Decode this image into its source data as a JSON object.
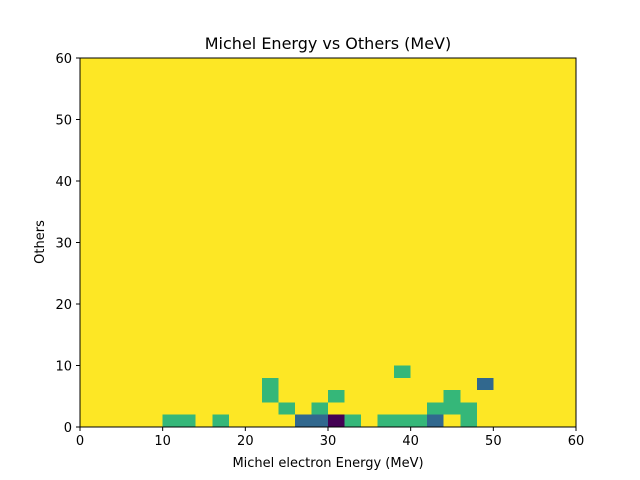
{
  "chart_data": {
    "type": "heatmap",
    "title": "Michel Energy vs Others (MeV)",
    "xlabel": "Michel electron Energy (MeV)",
    "ylabel": "Others",
    "xlim": [
      0,
      60
    ],
    "ylim": [
      0,
      60
    ],
    "xticks": [
      0,
      10,
      20,
      30,
      40,
      50,
      60
    ],
    "yticks": [
      0,
      10,
      20,
      30,
      40,
      50,
      60
    ],
    "grid": false,
    "bin_width": 2,
    "background_color": "#fde725",
    "cells": [
      {
        "x0": 10,
        "x1": 12,
        "y0": 0,
        "y1": 2,
        "color": "#35b779"
      },
      {
        "x0": 12,
        "x1": 14,
        "y0": 0,
        "y1": 2,
        "color": "#35b779"
      },
      {
        "x0": 16,
        "x1": 18,
        "y0": 0,
        "y1": 2,
        "color": "#35b779"
      },
      {
        "x0": 22,
        "x1": 24,
        "y0": 4,
        "y1": 6,
        "color": "#35b779"
      },
      {
        "x0": 22,
        "x1": 24,
        "y0": 6,
        "y1": 8,
        "color": "#35b779"
      },
      {
        "x0": 24,
        "x1": 26,
        "y0": 2,
        "y1": 4,
        "color": "#35b779"
      },
      {
        "x0": 26,
        "x1": 28,
        "y0": 0,
        "y1": 2,
        "color": "#31688e"
      },
      {
        "x0": 28,
        "x1": 30,
        "y0": 0,
        "y1": 2,
        "color": "#31688e"
      },
      {
        "x0": 28,
        "x1": 30,
        "y0": 2,
        "y1": 4,
        "color": "#35b779"
      },
      {
        "x0": 30,
        "x1": 32,
        "y0": 0,
        "y1": 2,
        "color": "#440154"
      },
      {
        "x0": 30,
        "x1": 32,
        "y0": 4,
        "y1": 6,
        "color": "#35b779"
      },
      {
        "x0": 32,
        "x1": 34,
        "y0": 0,
        "y1": 2,
        "color": "#35b779"
      },
      {
        "x0": 36,
        "x1": 38,
        "y0": 0,
        "y1": 2,
        "color": "#35b779"
      },
      {
        "x0": 38,
        "x1": 40,
        "y0": 0,
        "y1": 2,
        "color": "#35b779"
      },
      {
        "x0": 38,
        "x1": 40,
        "y0": 8,
        "y1": 10,
        "color": "#35b779"
      },
      {
        "x0": 40,
        "x1": 42,
        "y0": 0,
        "y1": 2,
        "color": "#35b779"
      },
      {
        "x0": 42,
        "x1": 44,
        "y0": 0,
        "y1": 2,
        "color": "#31688e"
      },
      {
        "x0": 42,
        "x1": 44,
        "y0": 2,
        "y1": 4,
        "color": "#35b779"
      },
      {
        "x0": 44,
        "x1": 46,
        "y0": 2,
        "y1": 4,
        "color": "#35b779"
      },
      {
        "x0": 44,
        "x1": 46,
        "y0": 4,
        "y1": 6,
        "color": "#35b779"
      },
      {
        "x0": 46,
        "x1": 48,
        "y0": 0,
        "y1": 2,
        "color": "#35b779"
      },
      {
        "x0": 46,
        "x1": 48,
        "y0": 2,
        "y1": 4,
        "color": "#35b779"
      },
      {
        "x0": 48,
        "x1": 50,
        "y0": 6,
        "y1": 8,
        "color": "#31688e"
      }
    ]
  }
}
